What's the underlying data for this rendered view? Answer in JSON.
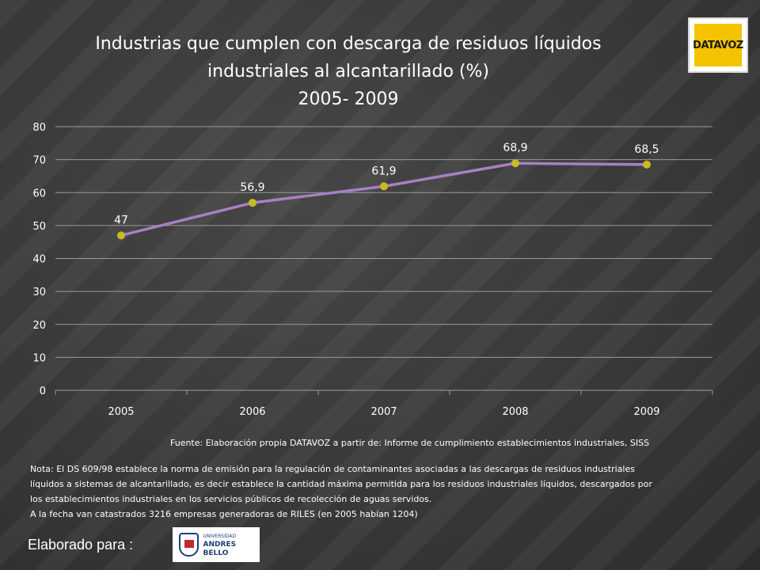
{
  "slide": {
    "title_line1": "Industrias que cumplen con descarga de residuos líquidos",
    "title_line2": "industriales al alcantarillado (%)",
    "title_line3": "2005- 2009",
    "source": "Fuente: Elaboración propia DATAVOZ a partir de:  Informe de cumplimiento establecimientos industriales, SISS",
    "note_lines": [
      "Nota: El DS 609/98 establece la norma de emisión para la regulación de contaminantes asociadas a las descargas de residuos industriales",
      "líquidos a sistemas de alcantarillado, es decir establece la cantidad máxima permitida para los residuos industriales líquidos, descargados por",
      "los establecimientos industriales en los servicios públicos de recolección de aguas servidos.",
      "A la fecha van catastrados 3216 empresas generadoras de RILES (en 2005 habían 1204)"
    ],
    "made_for": "Elaborado para :",
    "logo_datavoz_text": "DATAVOZ",
    "logo_unab_line1": "UNIVERSIDAD",
    "logo_unab_line2": "ANDRES BELLO"
  },
  "colors": {
    "line": "#a97fc4",
    "marker": "#c9b923",
    "text": "#ffffff",
    "grid": "#9a9a9a"
  },
  "chart_data": {
    "type": "line",
    "categories": [
      "2005",
      "2006",
      "2007",
      "2008",
      "2009"
    ],
    "values": [
      47,
      56.9,
      61.9,
      68.9,
      68.5
    ],
    "value_labels": [
      "47",
      "56,9",
      "61,9",
      "68,9",
      "68,5"
    ],
    "ylim": [
      0,
      80
    ],
    "yticks": [
      0,
      10,
      20,
      30,
      40,
      50,
      60,
      70,
      80
    ],
    "grid": true,
    "legend": "none"
  }
}
